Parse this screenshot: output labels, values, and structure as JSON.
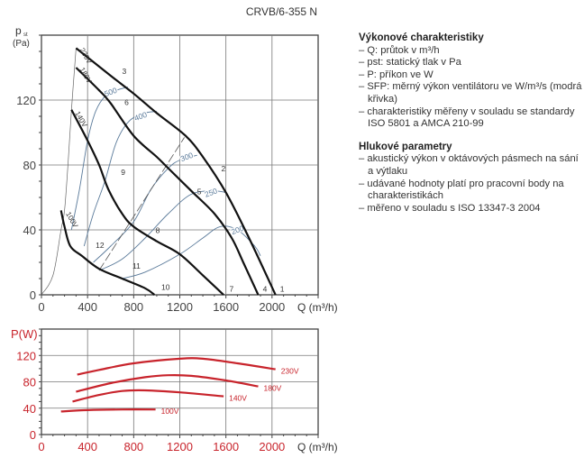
{
  "chart_data": [
    {
      "type": "line",
      "title": "CRVB/6-355 N",
      "ylabel_main": "p",
      "ylabel_sub": "st",
      "ylabel_unit": "(Pa)",
      "xlabel": "Q (m³/h)",
      "xlim": [
        0,
        2400
      ],
      "ylim": [
        0,
        160
      ],
      "xticks": [
        0,
        400,
        800,
        1200,
        1600,
        2000
      ],
      "yticks": [
        0,
        40,
        80,
        120
      ],
      "grid": true,
      "series": [
        {
          "name": "230V",
          "color": "#111111",
          "points": [
            [
              300,
              152
            ],
            [
              600,
              135
            ],
            [
              800,
              124
            ],
            [
              1000,
              112
            ],
            [
              1250,
              98
            ],
            [
              1400,
              85
            ],
            [
              1600,
              63
            ],
            [
              1800,
              35
            ],
            [
              2030,
              0
            ]
          ]
        },
        {
          "name": "180V",
          "color": "#111111",
          "points": [
            [
              300,
              140
            ],
            [
              500,
              126
            ],
            [
              600,
              118
            ],
            [
              800,
              98
            ],
            [
              1000,
              85
            ],
            [
              1100,
              78
            ],
            [
              1300,
              64
            ],
            [
              1500,
              50
            ],
            [
              1650,
              35
            ],
            [
              1750,
              20
            ],
            [
              1880,
              0
            ]
          ]
        },
        {
          "name": "140V",
          "color": "#111111",
          "points": [
            [
              260,
              114
            ],
            [
              400,
              95
            ],
            [
              500,
              80
            ],
            [
              580,
              65
            ],
            [
              700,
              50
            ],
            [
              800,
              42
            ],
            [
              1000,
              33
            ],
            [
              1200,
              25
            ],
            [
              1400,
              12
            ],
            [
              1580,
              0
            ]
          ]
        },
        {
          "name": "100V",
          "color": "#111111",
          "points": [
            [
              170,
              52
            ],
            [
              200,
              42
            ],
            [
              250,
              30
            ],
            [
              350,
              24
            ],
            [
              500,
              16
            ],
            [
              700,
              10
            ],
            [
              900,
              4
            ],
            [
              980,
              0
            ]
          ]
        }
      ],
      "sfp_curves": [
        {
          "name": "500",
          "color": "#5a7a9a",
          "label_at": [
            600,
            125
          ],
          "points": [
            [
              260,
              40
            ],
            [
              330,
              65
            ],
            [
              400,
              95
            ],
            [
              470,
              113
            ],
            [
              560,
              123
            ],
            [
              650,
              126
            ],
            [
              750,
              128
            ]
          ]
        },
        {
          "name": "400",
          "color": "#5a7a9a",
          "label_at": [
            860,
            110
          ],
          "points": [
            [
              370,
              30
            ],
            [
              450,
              50
            ],
            [
              550,
              70
            ],
            [
              650,
              94
            ],
            [
              760,
              107
            ],
            [
              900,
              112
            ],
            [
              1000,
              113
            ]
          ]
        },
        {
          "name": "300",
          "color": "#5a7a9a",
          "label_at": [
            1260,
            85
          ],
          "points": [
            [
              450,
              20
            ],
            [
              600,
              30
            ],
            [
              800,
              45
            ],
            [
              950,
              65
            ],
            [
              1100,
              78
            ],
            [
              1200,
              83
            ],
            [
              1350,
              86
            ]
          ]
        },
        {
          "name": "250",
          "color": "#5a7a9a",
          "label_at": [
            1470,
            63
          ],
          "points": [
            [
              500,
              15
            ],
            [
              700,
              22
            ],
            [
              900,
              35
            ],
            [
              1100,
              50
            ],
            [
              1300,
              62
            ],
            [
              1500,
              64
            ],
            [
              1600,
              63
            ]
          ]
        },
        {
          "name": "200",
          "color": "#5a7a9a",
          "label_at": [
            1700,
            40
          ],
          "points": [
            [
              700,
              10
            ],
            [
              900,
              14
            ],
            [
              1200,
              25
            ],
            [
              1400,
              35
            ],
            [
              1550,
              42
            ],
            [
              1700,
              40
            ],
            [
              1850,
              30
            ],
            [
              1900,
              24
            ]
          ]
        }
      ],
      "system_curve": [
        [
          0,
          0
        ],
        [
          100,
          12
        ],
        [
          170,
          40
        ],
        [
          200,
          52
        ],
        [
          230,
          80
        ],
        [
          260,
          114
        ],
        [
          300,
          152
        ]
      ],
      "dashed_line": [
        [
          500,
          15
        ],
        [
          1240,
          97
        ]
      ],
      "point_labels": [
        {
          "label": "1",
          "at": [
            2070,
            2
          ]
        },
        {
          "label": "2",
          "at": [
            1560,
            76
          ]
        },
        {
          "label": "3",
          "at": [
            700,
            136
          ]
        },
        {
          "label": "4",
          "at": [
            1920,
            2
          ]
        },
        {
          "label": "5",
          "at": [
            1350,
            62
          ]
        },
        {
          "label": "6",
          "at": [
            720,
            117
          ]
        },
        {
          "label": "7",
          "at": [
            1630,
            2
          ]
        },
        {
          "label": "8",
          "at": [
            990,
            38
          ]
        },
        {
          "label": "9",
          "at": [
            690,
            74
          ]
        },
        {
          "label": "10",
          "at": [
            1040,
            3
          ]
        },
        {
          "label": "11",
          "at": [
            790,
            16
          ]
        },
        {
          "label": "12",
          "at": [
            470,
            29
          ]
        }
      ],
      "voltage_labels": [
        {
          "label": "230V",
          "at": [
            330,
            151
          ]
        },
        {
          "label": "180V",
          "at": [
            330,
            139
          ]
        },
        {
          "label": "140V",
          "at": [
            290,
            112
          ]
        },
        {
          "label": "100V",
          "at": [
            210,
            50
          ]
        }
      ]
    },
    {
      "type": "line",
      "ylabel": "P(W)",
      "xlabel": "Q (m³/h)",
      "xlim": [
        0,
        2400
      ],
      "ylim": [
        0,
        160
      ],
      "xticks": [
        0,
        400,
        800,
        1200,
        1600,
        2000
      ],
      "yticks": [
        0,
        40,
        80,
        120
      ],
      "grid": true,
      "color": "#c8242c",
      "series": [
        {
          "name": "230V",
          "points": [
            [
              310,
              91
            ],
            [
              500,
              98
            ],
            [
              800,
              108
            ],
            [
              1200,
              115
            ],
            [
              1400,
              115
            ],
            [
              1700,
              108
            ],
            [
              2030,
              99
            ]
          ]
        },
        {
          "name": "180V",
          "points": [
            [
              300,
              65
            ],
            [
              600,
              78
            ],
            [
              900,
              87
            ],
            [
              1100,
              90
            ],
            [
              1300,
              89
            ],
            [
              1600,
              82
            ],
            [
              1880,
              73
            ]
          ]
        },
        {
          "name": "140V",
          "points": [
            [
              270,
              50
            ],
            [
              500,
              60
            ],
            [
              700,
              66
            ],
            [
              900,
              67
            ],
            [
              1200,
              64
            ],
            [
              1580,
              58
            ]
          ]
        },
        {
          "name": "100V",
          "points": [
            [
              170,
              35
            ],
            [
              400,
              37
            ],
            [
              700,
              38
            ],
            [
              990,
              38
            ]
          ]
        }
      ]
    }
  ],
  "legend_text": {
    "section1_title": "Výkonové charakteristiky",
    "section1_items": [
      "Q: průtok v m³/h",
      "pst: statický tlak v Pa",
      "P: příkon ve W",
      "SFP: měrný výkon ventilátoru ve W/m³/s (modrá křivka)",
      "charakteristiky měřeny v souladu se standardy ISO 5801 a AMCA 210-99"
    ],
    "section2_title": "Hlukové parametry",
    "section2_items": [
      "akustický výkon v oktávových pásmech na sání a výtlaku",
      "udávané hodnoty platí pro pracovní body na charakteristikách",
      "měřeno v souladu s ISO 13347-3 2004"
    ]
  }
}
